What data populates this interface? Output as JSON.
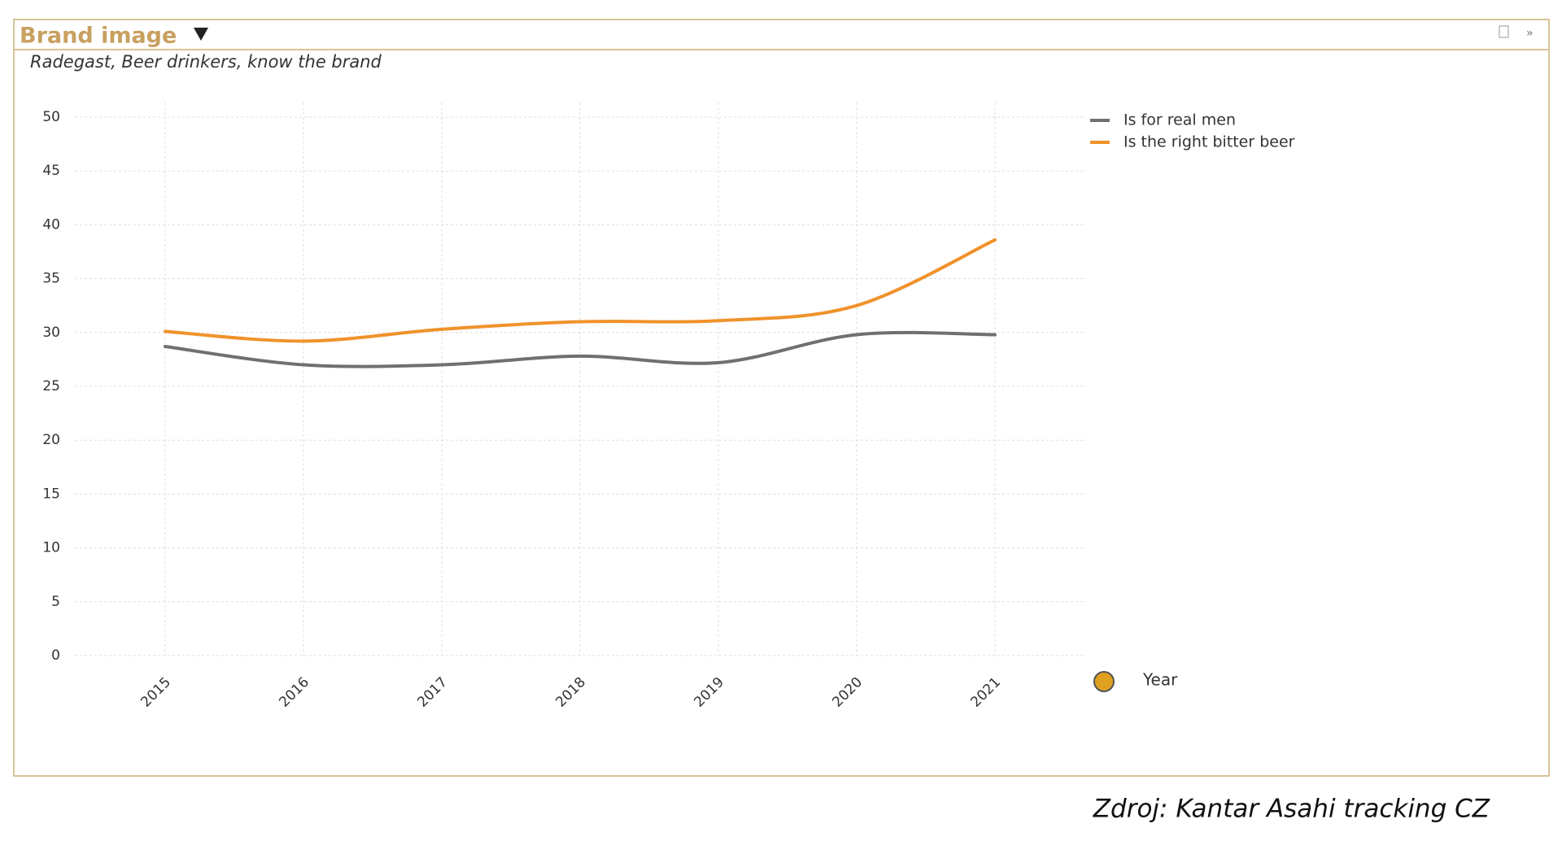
{
  "chart_data": {
    "type": "line",
    "title": "Brand image",
    "subtitle": "Radegast, Beer drinkers, know the brand",
    "categories": [
      "2015",
      "2016",
      "2017",
      "2018",
      "2019",
      "2020",
      "2021"
    ],
    "series": [
      {
        "name": "Is for real men",
        "color": "#707070",
        "values": [
          28.7,
          27.0,
          27.0,
          27.8,
          27.2,
          29.8,
          29.8
        ]
      },
      {
        "name": "Is the right bitter beer",
        "color": "#f0922b",
        "values": [
          30.1,
          29.2,
          30.3,
          31.0,
          31.1,
          32.5,
          38.6
        ]
      }
    ],
    "ylim": [
      0,
      50
    ],
    "yticks": [
      0,
      5,
      10,
      15,
      20,
      25,
      30,
      35,
      40,
      45,
      50
    ],
    "grid": true,
    "x_label": "Year",
    "source": "Zdroj: Kantar Asahi tracking CZ"
  }
}
